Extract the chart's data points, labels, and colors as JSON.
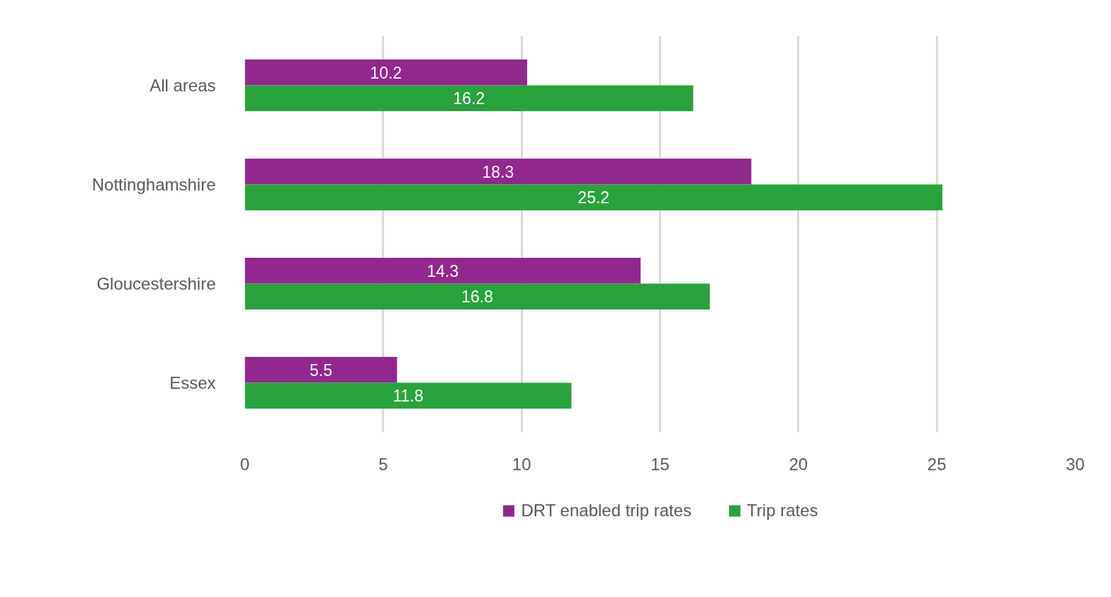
{
  "chart_data": {
    "type": "bar",
    "orientation": "horizontal",
    "categories": [
      "All areas",
      "Nottinghamshire",
      "Gloucestershire",
      "Essex"
    ],
    "series": [
      {
        "name": "DRT enabled trip rates",
        "color": "#92278f",
        "values": [
          10.2,
          18.3,
          14.3,
          5.5
        ]
      },
      {
        "name": "Trip rates",
        "color": "#28a33c",
        "values": [
          16.2,
          25.2,
          16.8,
          11.8
        ]
      }
    ],
    "xlim": [
      0,
      30
    ],
    "xticks": [
      0,
      5,
      10,
      15,
      20,
      25,
      30
    ],
    "grid": "x",
    "legend": "bottom",
    "data_labels": true
  }
}
